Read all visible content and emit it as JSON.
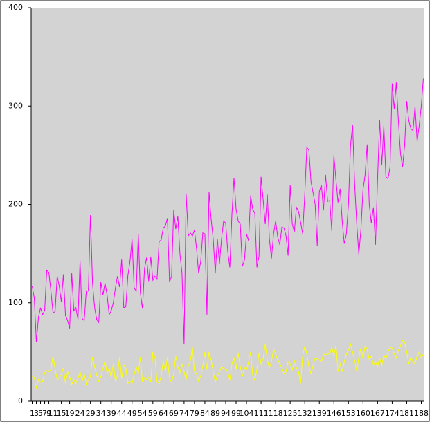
{
  "chart_data": {
    "type": "line",
    "x": [
      1,
      2,
      3,
      4,
      5,
      6,
      7,
      8,
      9,
      10,
      11,
      12,
      13,
      14,
      15,
      16,
      17,
      18,
      19,
      20,
      21,
      22,
      23,
      24,
      25,
      26,
      27,
      28,
      29,
      30,
      31,
      32,
      33,
      34,
      35,
      36,
      37,
      38,
      39,
      40,
      41,
      42,
      43,
      44,
      45,
      46,
      47,
      48,
      49,
      50,
      51,
      52,
      53,
      54,
      55,
      56,
      57,
      58,
      59,
      60,
      61,
      62,
      63,
      64,
      65,
      66,
      67,
      68,
      69,
      70,
      71,
      72,
      73,
      74,
      75,
      76,
      77,
      78,
      79,
      80,
      81,
      82,
      83,
      84,
      85,
      86,
      87,
      88,
      89,
      90,
      91,
      92,
      93,
      94,
      95,
      96,
      97,
      98,
      99,
      100,
      101,
      102,
      103,
      104,
      105,
      106,
      107,
      108,
      109,
      110,
      111,
      112,
      113,
      114,
      115,
      116,
      117,
      118,
      119,
      120,
      121,
      122,
      123,
      124,
      125,
      126,
      127,
      128,
      129,
      130,
      131,
      132,
      133,
      134,
      135,
      136,
      137,
      138,
      139,
      140,
      141,
      142,
      143,
      144,
      145,
      146,
      147,
      148,
      149,
      150,
      151,
      152,
      153,
      154,
      155,
      156,
      157,
      158,
      159,
      160,
      161,
      162,
      163,
      164,
      165,
      166,
      167,
      168,
      169,
      170,
      171,
      172,
      173,
      174,
      175,
      176,
      177,
      178,
      179,
      180,
      181,
      182,
      183,
      184,
      185,
      186,
      187,
      188,
      189
    ],
    "series": [
      {
        "color": "#ff00ff",
        "values": [
          117,
          105,
          60,
          85,
          95,
          88,
          92,
          133,
          131,
          112,
          90,
          91,
          127,
          117,
          101,
          129,
          87,
          82,
          74,
          130,
          92,
          95,
          83,
          143,
          84,
          82,
          112,
          112,
          189,
          120,
          95,
          83,
          80,
          121,
          108,
          120,
          108,
          88,
          92,
          100,
          115,
          127,
          116,
          144,
          95,
          96,
          128,
          142,
          165,
          115,
          112,
          170,
          110,
          94,
          135,
          146,
          122,
          147,
          123,
          127,
          124,
          162,
          164,
          176,
          178,
          186,
          121,
          127,
          194,
          175,
          188,
          150,
          130,
          58,
          211,
          168,
          171,
          168,
          174,
          155,
          130,
          142,
          171,
          170,
          88,
          213,
          185,
          165,
          130,
          165,
          140,
          165,
          183,
          181,
          152,
          136,
          190,
          227,
          195,
          183,
          180,
          137,
          143,
          170,
          163,
          209,
          195,
          191,
          136,
          147,
          228,
          205,
          180,
          210,
          165,
          145,
          170,
          183,
          167,
          159,
          177,
          176,
          168,
          148,
          220,
          180,
          172,
          197,
          193,
          182,
          170,
          210,
          258,
          255,
          223,
          212,
          200,
          158,
          213,
          220,
          194,
          230,
          203,
          204,
          173,
          250,
          225,
          202,
          216,
          183,
          160,
          170,
          200,
          260,
          281,
          220,
          180,
          149,
          175,
          215,
          230,
          261,
          200,
          181,
          197,
          159,
          226,
          286,
          240,
          280,
          228,
          226,
          238,
          323,
          297,
          324,
          285,
          252,
          238,
          260,
          305,
          285,
          277,
          275,
          300,
          264,
          280,
          300,
          328
        ]
      },
      {
        "color": "#ffff00",
        "values": [
          25,
          24,
          13,
          22,
          19,
          20,
          29,
          31,
          30,
          32,
          46,
          33,
          22,
          24,
          27,
          34,
          18,
          30,
          25,
          17,
          22,
          18,
          23,
          30,
          20,
          28,
          17,
          22,
          25,
          45,
          35,
          27,
          20,
          25,
          33,
          41,
          28,
          34,
          24,
          38,
          20,
          26,
          45,
          23,
          37,
          34,
          18,
          20,
          18,
          27,
          35,
          28,
          45,
          19,
          24,
          22,
          24,
          20,
          50,
          45,
          20,
          18,
          26,
          41,
          30,
          45,
          23,
          19,
          28,
          46,
          35,
          29,
          38,
          30,
          22,
          36,
          41,
          55,
          30,
          28,
          20,
          26,
          36,
          50,
          32,
          50,
          42,
          30,
          19,
          26,
          30,
          35,
          33,
          33,
          30,
          21,
          38,
          44,
          32,
          49,
          35,
          25,
          34,
          32,
          40,
          50,
          26,
          21,
          32,
          49,
          38,
          43,
          58,
          42,
          34,
          40,
          53,
          48,
          42,
          38,
          34,
          28,
          30,
          40,
          38,
          32,
          41,
          34,
          30,
          18,
          46,
          56,
          48,
          35,
          28,
          36,
          44,
          43,
          42,
          40,
          48,
          47,
          48,
          48,
          55,
          46,
          57,
          30,
          38,
          30,
          40,
          48,
          52,
          58,
          50,
          41,
          30,
          45,
          54,
          43,
          56,
          53,
          42,
          46,
          37,
          40,
          35,
          44,
          36,
          47,
          43,
          50,
          55,
          54,
          48,
          44,
          52,
          56,
          62,
          60,
          50,
          38,
          45,
          40,
          38,
          46,
          50,
          44,
          48
        ]
      }
    ],
    "xlim": [
      0.5,
      189.5
    ],
    "xticks": [
      1,
      3,
      5,
      7,
      9,
      11,
      15,
      19,
      24,
      29,
      34,
      39,
      44,
      49,
      54,
      59,
      64,
      69,
      74,
      79,
      84,
      89,
      94,
      99,
      104,
      111,
      118,
      125,
      132,
      139,
      146,
      153,
      160,
      167,
      174,
      181,
      188
    ],
    "ylim": [
      0,
      400
    ],
    "yticks": [
      0,
      100,
      200,
      300,
      400
    ],
    "background": "#d3d3d3"
  }
}
